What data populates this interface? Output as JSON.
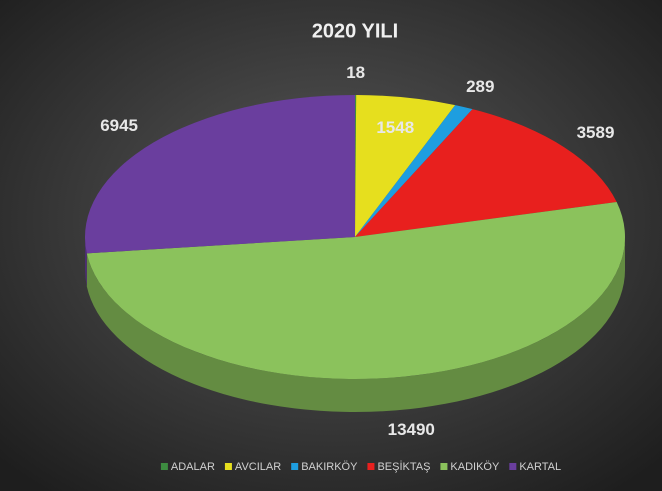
{
  "chart_data": {
    "type": "pie3d",
    "title": "2020 YILI",
    "categories": [
      "ADALAR",
      "AVCILAR",
      "BAKIRKÖY",
      "BEŞİKTAŞ",
      "KADIKÖY",
      "KARTAL"
    ],
    "values": [
      18,
      1548,
      289,
      3589,
      13490,
      6945
    ],
    "colors": [
      "#3d8c40",
      "#e6df1e",
      "#1e9ee0",
      "#e8201e",
      "#8bc25c",
      "#6a3e9e"
    ],
    "legend": "bottom"
  }
}
